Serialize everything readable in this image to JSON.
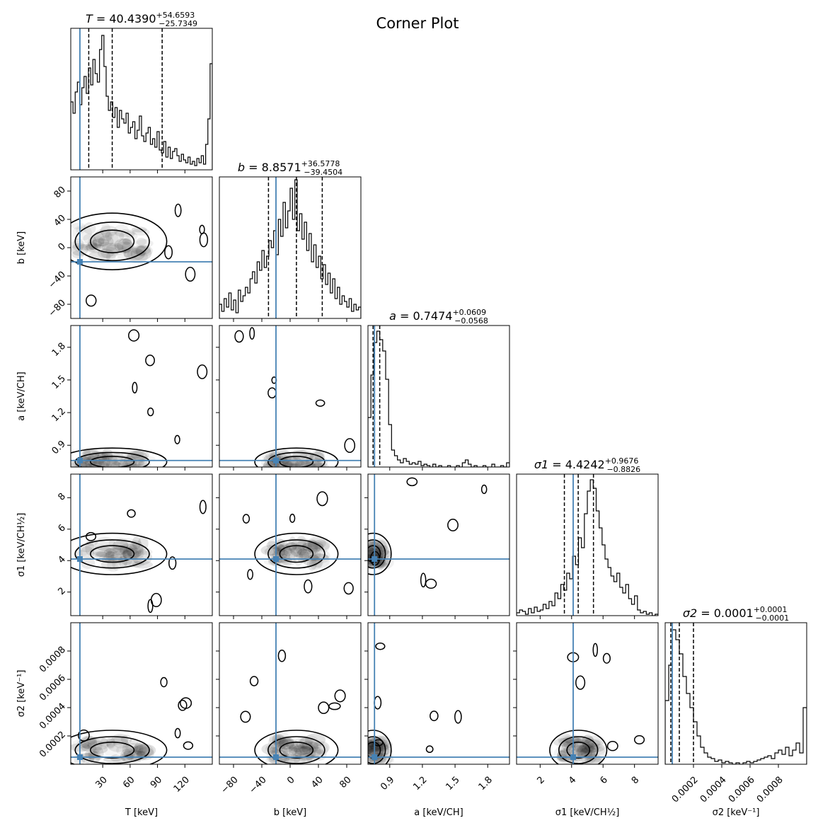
{
  "title": "Corner Plot",
  "colors": {
    "truth": "#4682b4",
    "line": "#000000",
    "axes": "#000000"
  },
  "chart_data": {
    "type": "corner",
    "parameters": [
      {
        "name": "T",
        "unit": "[keV]",
        "xlabel": "T [keV]",
        "range": [
          -5,
          150
        ],
        "ticks": [
          "30",
          "60",
          "90",
          "120"
        ],
        "tick_values": [
          30,
          60,
          90,
          120
        ],
        "truth": 5,
        "median": 40.439,
        "plus": 54.6593,
        "minus": 25.7349,
        "quantiles": [
          14.7,
          40.4,
          95.1
        ],
        "title_sym": "T",
        "title_val": "40.4390",
        "title_plus": "+54.6593",
        "title_minus": "−25.7349",
        "hist": [
          0.48,
          0.4,
          0.55,
          0.62,
          0.46,
          0.58,
          0.66,
          0.54,
          0.72,
          0.6,
          0.78,
          0.68,
          0.62,
          0.85,
          0.95,
          0.73,
          0.52,
          0.42,
          0.48,
          0.37,
          0.44,
          0.3,
          0.42,
          0.36,
          0.33,
          0.4,
          0.26,
          0.3,
          0.34,
          0.22,
          0.28,
          0.38,
          0.24,
          0.2,
          0.26,
          0.3,
          0.18,
          0.22,
          0.16,
          0.27,
          0.14,
          0.12,
          0.2,
          0.09,
          0.16,
          0.08,
          0.13,
          0.15,
          0.1,
          0.06,
          0.11,
          0.07,
          0.05,
          0.09,
          0.04,
          0.06,
          0.03,
          0.08,
          0.05,
          0.1,
          0.04,
          0.18,
          0.36,
          0.75
        ]
      },
      {
        "name": "b",
        "unit": "[keV]",
        "xlabel": "b [keV]",
        "range": [
          -100,
          100
        ],
        "ticks": [
          "−80",
          "−40",
          "0",
          "40",
          "80"
        ],
        "tick_values": [
          -80,
          -40,
          0,
          40,
          80
        ],
        "truth": -20,
        "median": 8.8571,
        "plus": 36.5778,
        "minus": 39.4504,
        "quantiles": [
          -30.6,
          8.9,
          45.4
        ],
        "title_sym": "b",
        "title_val": "8.8571",
        "title_plus": "+36.5778",
        "title_minus": "−39.4504",
        "hist": [
          0.1,
          0.05,
          0.14,
          0.08,
          0.18,
          0.06,
          0.13,
          0.04,
          0.2,
          0.12,
          0.16,
          0.22,
          0.18,
          0.28,
          0.33,
          0.25,
          0.4,
          0.34,
          0.48,
          0.36,
          0.44,
          0.55,
          0.5,
          0.62,
          0.45,
          0.7,
          0.58,
          0.82,
          0.64,
          0.76,
          0.92,
          0.7,
          0.98,
          0.62,
          0.74,
          0.56,
          0.68,
          0.48,
          0.6,
          0.4,
          0.52,
          0.36,
          0.44,
          0.28,
          0.38,
          0.24,
          0.32,
          0.18,
          0.28,
          0.14,
          0.22,
          0.1,
          0.16,
          0.12,
          0.08,
          0.14,
          0.05,
          0.1,
          0.06,
          0.08
        ]
      },
      {
        "name": "a",
        "unit": "[keV/CH]",
        "xlabel": "a [keV/CH]",
        "range": [
          0.7,
          2.0
        ],
        "ticks": [
          "0.9",
          "1.2",
          "1.5",
          "1.8"
        ],
        "tick_values": [
          0.9,
          1.2,
          1.5,
          1.8
        ],
        "truth": 0.76,
        "median": 0.7474,
        "plus": 0.0609,
        "minus": 0.0568,
        "quantiles": [
          0.691,
          0.747,
          0.808
        ],
        "title_sym": "a",
        "title_val": "0.7474",
        "title_plus": "+0.0609",
        "title_minus": "−0.0568",
        "hist": [
          0.35,
          0.65,
          0.88,
          0.96,
          0.9,
          0.82,
          0.62,
          0.3,
          0.12,
          0.08,
          0.05,
          0.03,
          0.06,
          0.04,
          0.02,
          0.03,
          0.02,
          0.04,
          0.01,
          0.02,
          0.01,
          0.0,
          0.02,
          0.0,
          0.01,
          0.0,
          0.0,
          0.01,
          0.0,
          0.0,
          0.01,
          0.0,
          0.03,
          0.05,
          0.02,
          0.0,
          0.01,
          0.0,
          0.0,
          0.01,
          0.0,
          0.0,
          0.02,
          0.0,
          0.0,
          0.01,
          0.0,
          0.03
        ]
      },
      {
        "name": "σ1",
        "unit": "[keV/CH½]",
        "xlabel": "σ1 [keV/CH½]",
        "range": [
          0.5,
          9.5
        ],
        "ticks": [
          "2",
          "4",
          "6",
          "8"
        ],
        "tick_values": [
          2,
          4,
          6,
          8
        ],
        "truth": 4.1,
        "median": 4.4242,
        "plus": 0.9676,
        "minus": 0.8826,
        "quantiles": [
          3.54,
          4.42,
          5.39
        ],
        "title_sym": "σ1",
        "title_val": "4.4242",
        "title_plus": "+0.9676",
        "title_minus": "−0.8826",
        "hist": [
          0.02,
          0.04,
          0.03,
          0.01,
          0.05,
          0.02,
          0.06,
          0.03,
          0.04,
          0.08,
          0.05,
          0.1,
          0.07,
          0.16,
          0.12,
          0.22,
          0.18,
          0.3,
          0.26,
          0.42,
          0.36,
          0.55,
          0.48,
          0.72,
          0.88,
          0.96,
          0.9,
          0.74,
          0.62,
          0.5,
          0.4,
          0.34,
          0.28,
          0.24,
          0.3,
          0.2,
          0.16,
          0.22,
          0.12,
          0.08,
          0.14,
          0.04,
          0.02,
          0.03,
          0.01,
          0.02,
          0.0,
          0.01
        ]
      },
      {
        "name": "σ2",
        "unit": "[keV⁻¹]",
        "xlabel": "σ2 [keV⁻¹]",
        "range": [
          0.0,
          0.001
        ],
        "ticks": [
          "0.0002",
          "0.0004",
          "0.0006",
          "0.0008"
        ],
        "tick_values": [
          0.0002,
          0.0004,
          0.0006,
          0.0008
        ],
        "truth": 5e-05,
        "median": 0.0001,
        "plus": 0.0001,
        "minus": 0.0001,
        "quantiles": [
          4e-05,
          0.0001,
          0.0002
        ],
        "title_sym": "σ2",
        "title_val": "0.0001",
        "title_plus": "+0.0001",
        "title_minus": "−0.0001",
        "hist": [
          0.45,
          0.7,
          0.95,
          0.88,
          0.78,
          0.62,
          0.5,
          0.4,
          0.3,
          0.2,
          0.12,
          0.08,
          0.05,
          0.04,
          0.02,
          0.03,
          0.01,
          0.02,
          0.01,
          0.0,
          0.01,
          0.0,
          0.01,
          0.02,
          0.01,
          0.02,
          0.03,
          0.04,
          0.05,
          0.06,
          0.04,
          0.08,
          0.1,
          0.07,
          0.12,
          0.06,
          0.1,
          0.15,
          0.08,
          0.4
        ]
      }
    ]
  }
}
